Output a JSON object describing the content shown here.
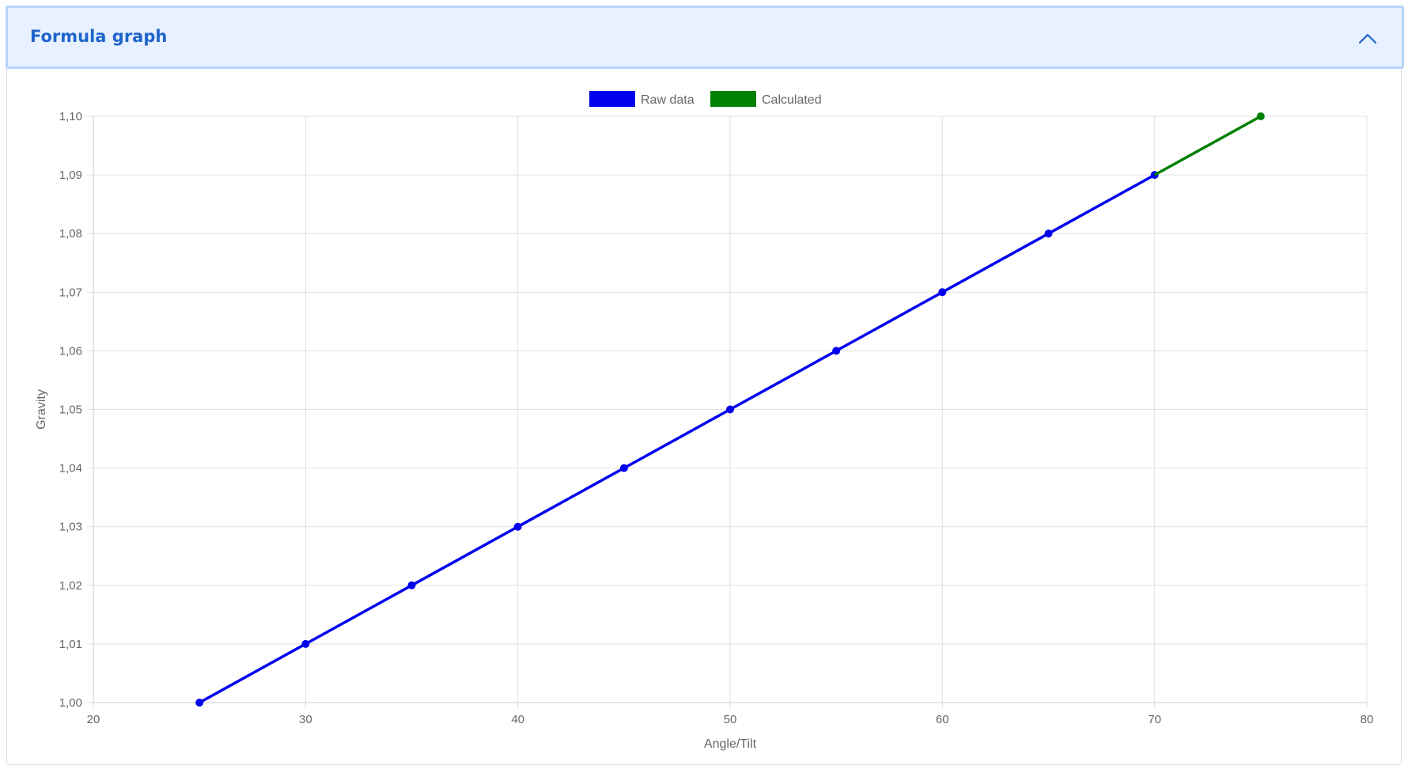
{
  "panel": {
    "title": "Formula graph",
    "collapse_icon": "chevron-up-icon"
  },
  "chart_data": {
    "type": "line",
    "xlabel": "Angle/Tilt",
    "ylabel": "Gravity",
    "xlim": [
      20,
      80
    ],
    "ylim": [
      1.0,
      1.1
    ],
    "x_ticks": [
      "20",
      "30",
      "40",
      "50",
      "60",
      "70",
      "80"
    ],
    "y_ticks": [
      "1,00",
      "1,01",
      "1,02",
      "1,03",
      "1,04",
      "1,05",
      "1,06",
      "1,07",
      "1,08",
      "1,09",
      "1,10"
    ],
    "grid": true,
    "legend_position": "top-center",
    "series": [
      {
        "name": "Raw data",
        "color": "#0000ee",
        "points": [
          {
            "x": 25,
            "y": 1.0
          },
          {
            "x": 30,
            "y": 1.01
          },
          {
            "x": 35,
            "y": 1.02
          },
          {
            "x": 40,
            "y": 1.03
          },
          {
            "x": 45,
            "y": 1.04
          },
          {
            "x": 50,
            "y": 1.05
          },
          {
            "x": 55,
            "y": 1.06
          },
          {
            "x": 60,
            "y": 1.07
          },
          {
            "x": 65,
            "y": 1.08
          },
          {
            "x": 70,
            "y": 1.09
          }
        ]
      },
      {
        "name": "Calculated",
        "color": "#008000",
        "points": [
          {
            "x": 70,
            "y": 1.09
          },
          {
            "x": 75,
            "y": 1.1
          }
        ]
      }
    ]
  }
}
